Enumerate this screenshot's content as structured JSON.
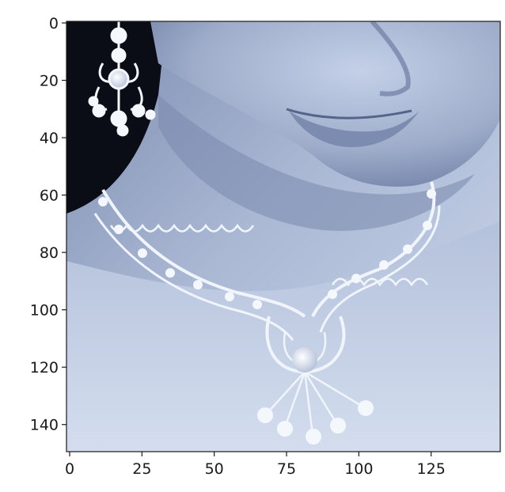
{
  "image_plot": {
    "subject": "woman-wearing-necklace-and-earring",
    "colormap": "bone",
    "colors": {
      "background": "#0a0d16",
      "skin_light": "#c9d4ea",
      "skin_mid": "#a9b6d2",
      "skin_shadow": "#7f8fb3",
      "jewel": "#f4f7fc",
      "jewel_shadow": "#8b98b8"
    },
    "x_axis": {
      "range": [
        0,
        150
      ],
      "ticks": [
        {
          "value": 0,
          "label": "0"
        },
        {
          "value": 25,
          "label": "25"
        },
        {
          "value": 50,
          "label": "50"
        },
        {
          "value": 75,
          "label": "75"
        },
        {
          "value": 100,
          "label": "100"
        },
        {
          "value": 125,
          "label": "125"
        }
      ]
    },
    "y_axis": {
      "range": [
        0,
        150
      ],
      "inverted": true,
      "ticks": [
        {
          "value": 0,
          "label": "0"
        },
        {
          "value": 20,
          "label": "20"
        },
        {
          "value": 40,
          "label": "40"
        },
        {
          "value": 60,
          "label": "60"
        },
        {
          "value": 80,
          "label": "80"
        },
        {
          "value": 100,
          "label": "100"
        },
        {
          "value": 120,
          "label": "120"
        },
        {
          "value": 140,
          "label": "140"
        }
      ]
    }
  }
}
